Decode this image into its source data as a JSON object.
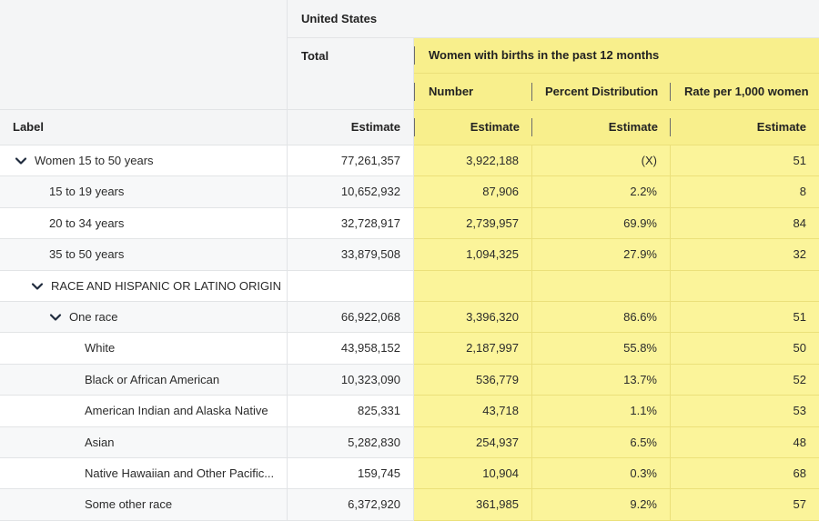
{
  "header": {
    "geography": "United States",
    "total": "Total",
    "group": "Women with births in the past 12 months",
    "col_number": "Number",
    "col_percent": "Percent Distribution",
    "col_rate": "Rate per 1,000 women",
    "label": "Label",
    "estimate": "Estimate"
  },
  "rows": [
    {
      "label": "Women 15 to 50 years",
      "total": "77,261,357",
      "number": "3,922,188",
      "percent": "(X)",
      "rate": "51"
    },
    {
      "label": "15 to 19 years",
      "total": "10,652,932",
      "number": "87,906",
      "percent": "2.2%",
      "rate": "8"
    },
    {
      "label": "20 to 34 years",
      "total": "32,728,917",
      "number": "2,739,957",
      "percent": "69.9%",
      "rate": "84"
    },
    {
      "label": "35 to 50 years",
      "total": "33,879,508",
      "number": "1,094,325",
      "percent": "27.9%",
      "rate": "32"
    },
    {
      "label": "RACE AND HISPANIC OR LATINO ORIGIN",
      "total": "",
      "number": "",
      "percent": "",
      "rate": ""
    },
    {
      "label": "One race",
      "total": "66,922,068",
      "number": "3,396,320",
      "percent": "86.6%",
      "rate": "51"
    },
    {
      "label": "White",
      "total": "43,958,152",
      "number": "2,187,997",
      "percent": "55.8%",
      "rate": "50"
    },
    {
      "label": "Black or African American",
      "total": "10,323,090",
      "number": "536,779",
      "percent": "13.7%",
      "rate": "52"
    },
    {
      "label": "American Indian and Alaska Native",
      "total": "825,331",
      "number": "43,718",
      "percent": "1.1%",
      "rate": "53"
    },
    {
      "label": "Asian",
      "total": "5,282,830",
      "number": "254,937",
      "percent": "6.5%",
      "rate": "48"
    },
    {
      "label": "Native Hawaiian and Other Pacific...",
      "total": "159,745",
      "number": "10,904",
      "percent": "0.3%",
      "rate": "68"
    },
    {
      "label": "Some other race",
      "total": "6,372,920",
      "number": "361,985",
      "percent": "9.2%",
      "rate": "57"
    }
  ],
  "icons": {
    "expand": "chevron-down-icon"
  },
  "colors": {
    "highlight": "#fbf49a",
    "header_bg": "#f4f5f6",
    "chevron": "#1f2b3d"
  }
}
